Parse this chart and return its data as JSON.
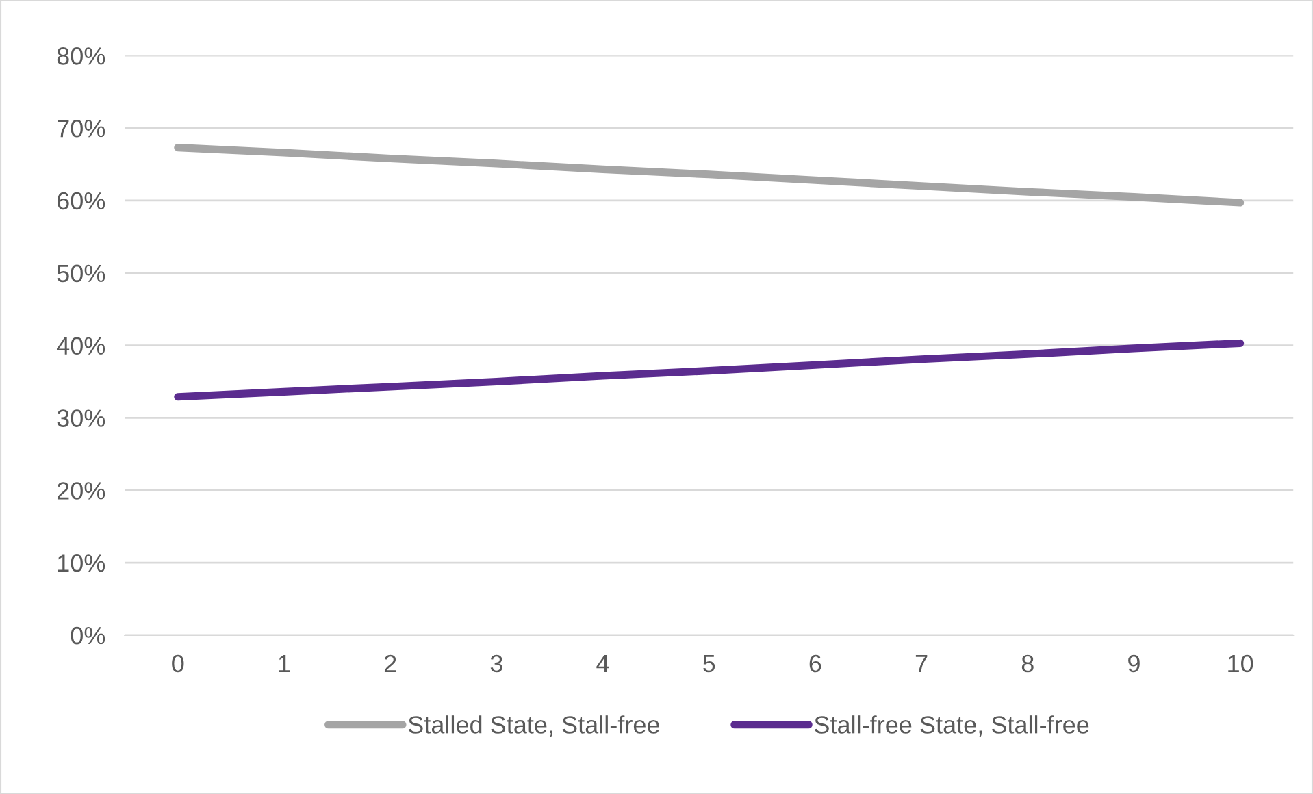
{
  "chart_data": {
    "type": "line",
    "categories": [
      "0",
      "1",
      "2",
      "3",
      "4",
      "5",
      "6",
      "7",
      "8",
      "9",
      "10"
    ],
    "series": [
      {
        "name": "Stalled State, Stall-free",
        "color": "#a5a5a5",
        "values": [
          67.3,
          66.6,
          65.8,
          65.1,
          64.3,
          63.6,
          62.8,
          62.0,
          61.2,
          60.5,
          59.7
        ]
      },
      {
        "name": "Stall-free State, Stall-free",
        "color": "#5b2c8f",
        "values": [
          32.9,
          33.6,
          34.3,
          35.0,
          35.8,
          36.5,
          37.3,
          38.1,
          38.8,
          39.6,
          40.3
        ]
      }
    ],
    "ylim": [
      0,
      80
    ],
    "yticks": [
      {
        "value": 0,
        "label": "0%"
      },
      {
        "value": 10,
        "label": "10%"
      },
      {
        "value": 20,
        "label": "20%"
      },
      {
        "value": 30,
        "label": "30%"
      },
      {
        "value": 40,
        "label": "40%"
      },
      {
        "value": 50,
        "label": "50%"
      },
      {
        "value": 60,
        "label": "60%"
      },
      {
        "value": 70,
        "label": "70%"
      },
      {
        "value": 80,
        "label": "80%"
      }
    ],
    "grid": "y",
    "legend": "bottom",
    "marker": "none",
    "line_style": "solid"
  }
}
